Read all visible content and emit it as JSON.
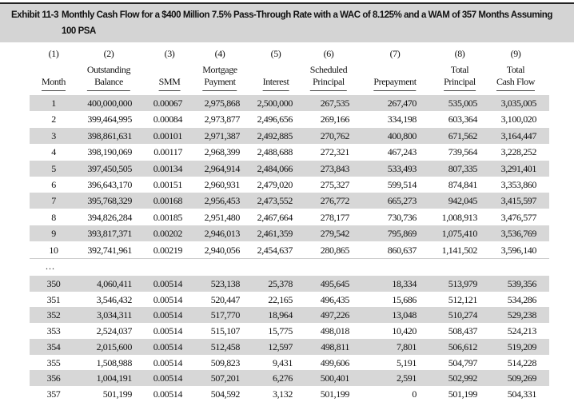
{
  "title": {
    "exhibit": "Exhibit 11-3",
    "text": "Monthly Cash Flow for a  $400 Million 7.5% Pass-Through Rate with a WAC of 8.125% and a WAM of 357 Months Assuming 100 PSA"
  },
  "column_numbers": [
    "(1)",
    "(2)",
    "(3)",
    "(4)",
    "(5)",
    "(6)",
    "(7)",
    "(8)",
    "(9)"
  ],
  "headers": [
    [
      "",
      "Month"
    ],
    [
      "Outstanding",
      "Balance"
    ],
    [
      "",
      "SMM"
    ],
    [
      "Mortgage",
      "Payment"
    ],
    [
      "",
      "Interest"
    ],
    [
      "Scheduled",
      "Principal"
    ],
    [
      "",
      "Prepayment"
    ],
    [
      "Total",
      "Principal"
    ],
    [
      "Total",
      "Cash Flow"
    ]
  ],
  "rows_top": [
    [
      "1",
      "400,000,000",
      "0.00067",
      "2,975,868",
      "2,500,000",
      "267,535",
      "267,470",
      "535,005",
      "3,035,005"
    ],
    [
      "2",
      "399,464,995",
      "0.00084",
      "2,973,877",
      "2,496,656",
      "269,166",
      "334,198",
      "603,364",
      "3,100,020"
    ],
    [
      "3",
      "398,861,631",
      "0.00101",
      "2,971,387",
      "2,492,885",
      "270,762",
      "400,800",
      "671,562",
      "3,164,447"
    ],
    [
      "4",
      "398,190,069",
      "0.00117",
      "2,968,399",
      "2,488,688",
      "272,321",
      "467,243",
      "739,564",
      "3,228,252"
    ],
    [
      "5",
      "397,450,505",
      "0.00134",
      "2,964,914",
      "2,484,066",
      "273,843",
      "533,493",
      "807,335",
      "3,291,401"
    ],
    [
      "6",
      "396,643,170",
      "0.00151",
      "2,960,931",
      "2,479,020",
      "275,327",
      "599,514",
      "874,841",
      "3,353,860"
    ],
    [
      "7",
      "395,768,329",
      "0.00168",
      "2,956,453",
      "2,473,552",
      "276,772",
      "665,273",
      "942,045",
      "3,415,597"
    ],
    [
      "8",
      "394,826,284",
      "0.00185",
      "2,951,480",
      "2,467,664",
      "278,177",
      "730,736",
      "1,008,913",
      "3,476,577"
    ],
    [
      "9",
      "393,817,371",
      "0.00202",
      "2,946,013",
      "2,461,359",
      "279,542",
      "795,869",
      "1,075,410",
      "3,536,769"
    ],
    [
      "10",
      "392,741,961",
      "0.00219",
      "2,940,056",
      "2,454,637",
      "280,865",
      "860,637",
      "1,141,502",
      "3,596,140"
    ]
  ],
  "ellipsis": "...",
  "rows_bottom": [
    [
      "350",
      "4,060,411",
      "0.00514",
      "523,138",
      "25,378",
      "495,645",
      "18,334",
      "513,979",
      "539,356"
    ],
    [
      "351",
      "3,546,432",
      "0.00514",
      "520,447",
      "22,165",
      "496,435",
      "15,686",
      "512,121",
      "534,286"
    ],
    [
      "352",
      "3,034,311",
      "0.00514",
      "517,770",
      "18,964",
      "497,226",
      "13,048",
      "510,274",
      "529,238"
    ],
    [
      "353",
      "2,524,037",
      "0.00514",
      "515,107",
      "15,775",
      "498,018",
      "10,420",
      "508,437",
      "524,213"
    ],
    [
      "354",
      "2,015,600",
      "0.00514",
      "512,458",
      "12,597",
      "498,811",
      "7,801",
      "506,612",
      "519,209"
    ],
    [
      "355",
      "1,508,988",
      "0.00514",
      "509,823",
      "9,431",
      "499,606",
      "5,191",
      "504,797",
      "514,228"
    ],
    [
      "356",
      "1,004,191",
      "0.00514",
      "507,201",
      "6,276",
      "500,401",
      "2,591",
      "502,992",
      "509,269"
    ],
    [
      "357",
      "501,199",
      "0.00514",
      "504,592",
      "3,132",
      "501,199",
      "0",
      "501,199",
      "504,331"
    ]
  ],
  "colors": {
    "shade": "#d7d7d7",
    "title_bg": "#d4d4d4"
  }
}
